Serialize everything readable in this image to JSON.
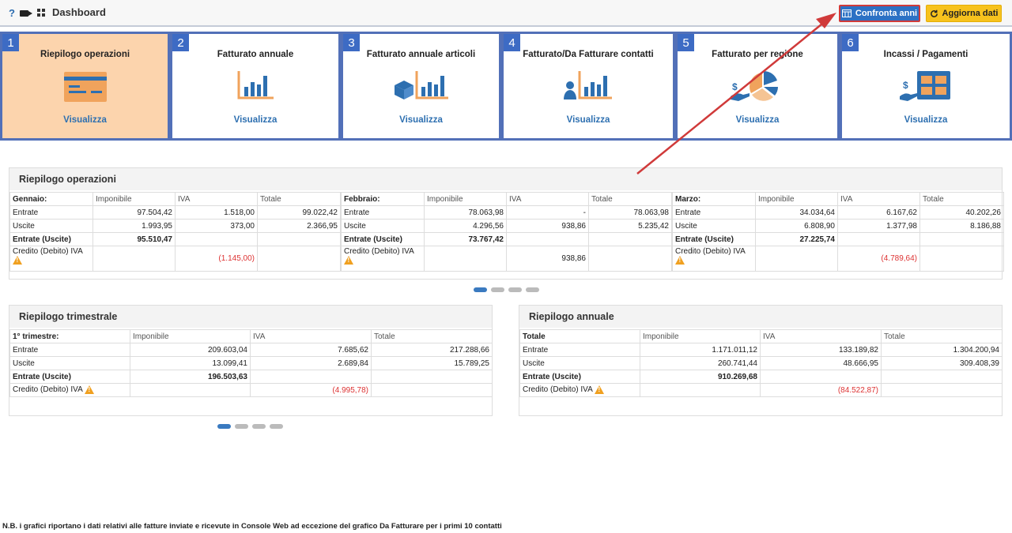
{
  "header": {
    "title": "Dashboard",
    "help_icon": "?",
    "compare_label": "Confronta anni",
    "refresh_label": "Aggiorna dati"
  },
  "cards": [
    {
      "num": "1",
      "title": "Riepilogo operazioni",
      "link": "Visualizza"
    },
    {
      "num": "2",
      "title": "Fatturato annuale",
      "link": "Visualizza"
    },
    {
      "num": "3",
      "title": "Fatturato annuale articoli",
      "link": "Visualizza"
    },
    {
      "num": "4",
      "title": "Fatturato/Da Fatturare contatti",
      "link": "Visualizza"
    },
    {
      "num": "5",
      "title": "Fatturato per regione",
      "link": "Visualizza"
    },
    {
      "num": "6",
      "title": "Incassi / Pagamenti",
      "link": "Visualizza"
    }
  ],
  "ops": {
    "title": "Riepilogo operazioni",
    "col_imponibile": "Imponibile",
    "col_iva": "IVA",
    "col_totale": "Totale",
    "lbl_entrate": "Entrate",
    "lbl_uscite": "Uscite",
    "lbl_net": "Entrate (Uscite)",
    "lbl_credito": "Credito (Debito) IVA",
    "months": [
      {
        "name": "Gennaio:",
        "ent_imp": "97.504,42",
        "ent_iva": "1.518,00",
        "ent_tot": "99.022,42",
        "usc_imp": "1.993,95",
        "usc_iva": "373,00",
        "usc_tot": "2.366,95",
        "net": "95.510,47",
        "cred": "(1.145,00)"
      },
      {
        "name": "Febbraio:",
        "ent_imp": "78.063,98",
        "ent_iva": "-",
        "ent_tot": "78.063,98",
        "usc_imp": "4.296,56",
        "usc_iva": "938,86",
        "usc_tot": "5.235,42",
        "net": "73.767,42",
        "cred": "938,86"
      },
      {
        "name": "Marzo:",
        "ent_imp": "34.034,64",
        "ent_iva": "6.167,62",
        "ent_tot": "40.202,26",
        "usc_imp": "6.808,90",
        "usc_iva": "1.377,98",
        "usc_tot": "8.186,88",
        "net": "27.225,74",
        "cred": "(4.789,64)"
      }
    ]
  },
  "quarter": {
    "title": "Riepilogo trimestrale",
    "period": "1° trimestre:",
    "ent_imp": "209.603,04",
    "ent_iva": "7.685,62",
    "ent_tot": "217.288,66",
    "usc_imp": "13.099,41",
    "usc_iva": "2.689,84",
    "usc_tot": "15.789,25",
    "net": "196.503,63",
    "cred": "(4.995,78)"
  },
  "annual": {
    "title": "Riepilogo annuale",
    "period": "Totale",
    "ent_imp": "1.171.011,12",
    "ent_iva": "133.189,82",
    "ent_tot": "1.304.200,94",
    "usc_imp": "260.741,44",
    "usc_iva": "48.666,95",
    "usc_tot": "309.408,39",
    "net": "910.269,68",
    "cred": "(84.522,87)"
  },
  "footer_note": "N.B. i grafici riportano i dati relativi alle fatture inviate e ricevute in Console Web ad eccezione del grafico Da Fatturare per i primi 10 contatti",
  "colors": {
    "accent": "#2c71c4",
    "card_border": "#5270b8",
    "active_card": "#fcd4ad",
    "link": "#2d6fb0",
    "negative": "#dd3333",
    "arrow": "#d03a3a"
  },
  "icons": [
    "question-icon",
    "video-camera-icon",
    "grid-icon",
    "calendar-compare-icon",
    "refresh-icon",
    "warning-icon"
  ]
}
